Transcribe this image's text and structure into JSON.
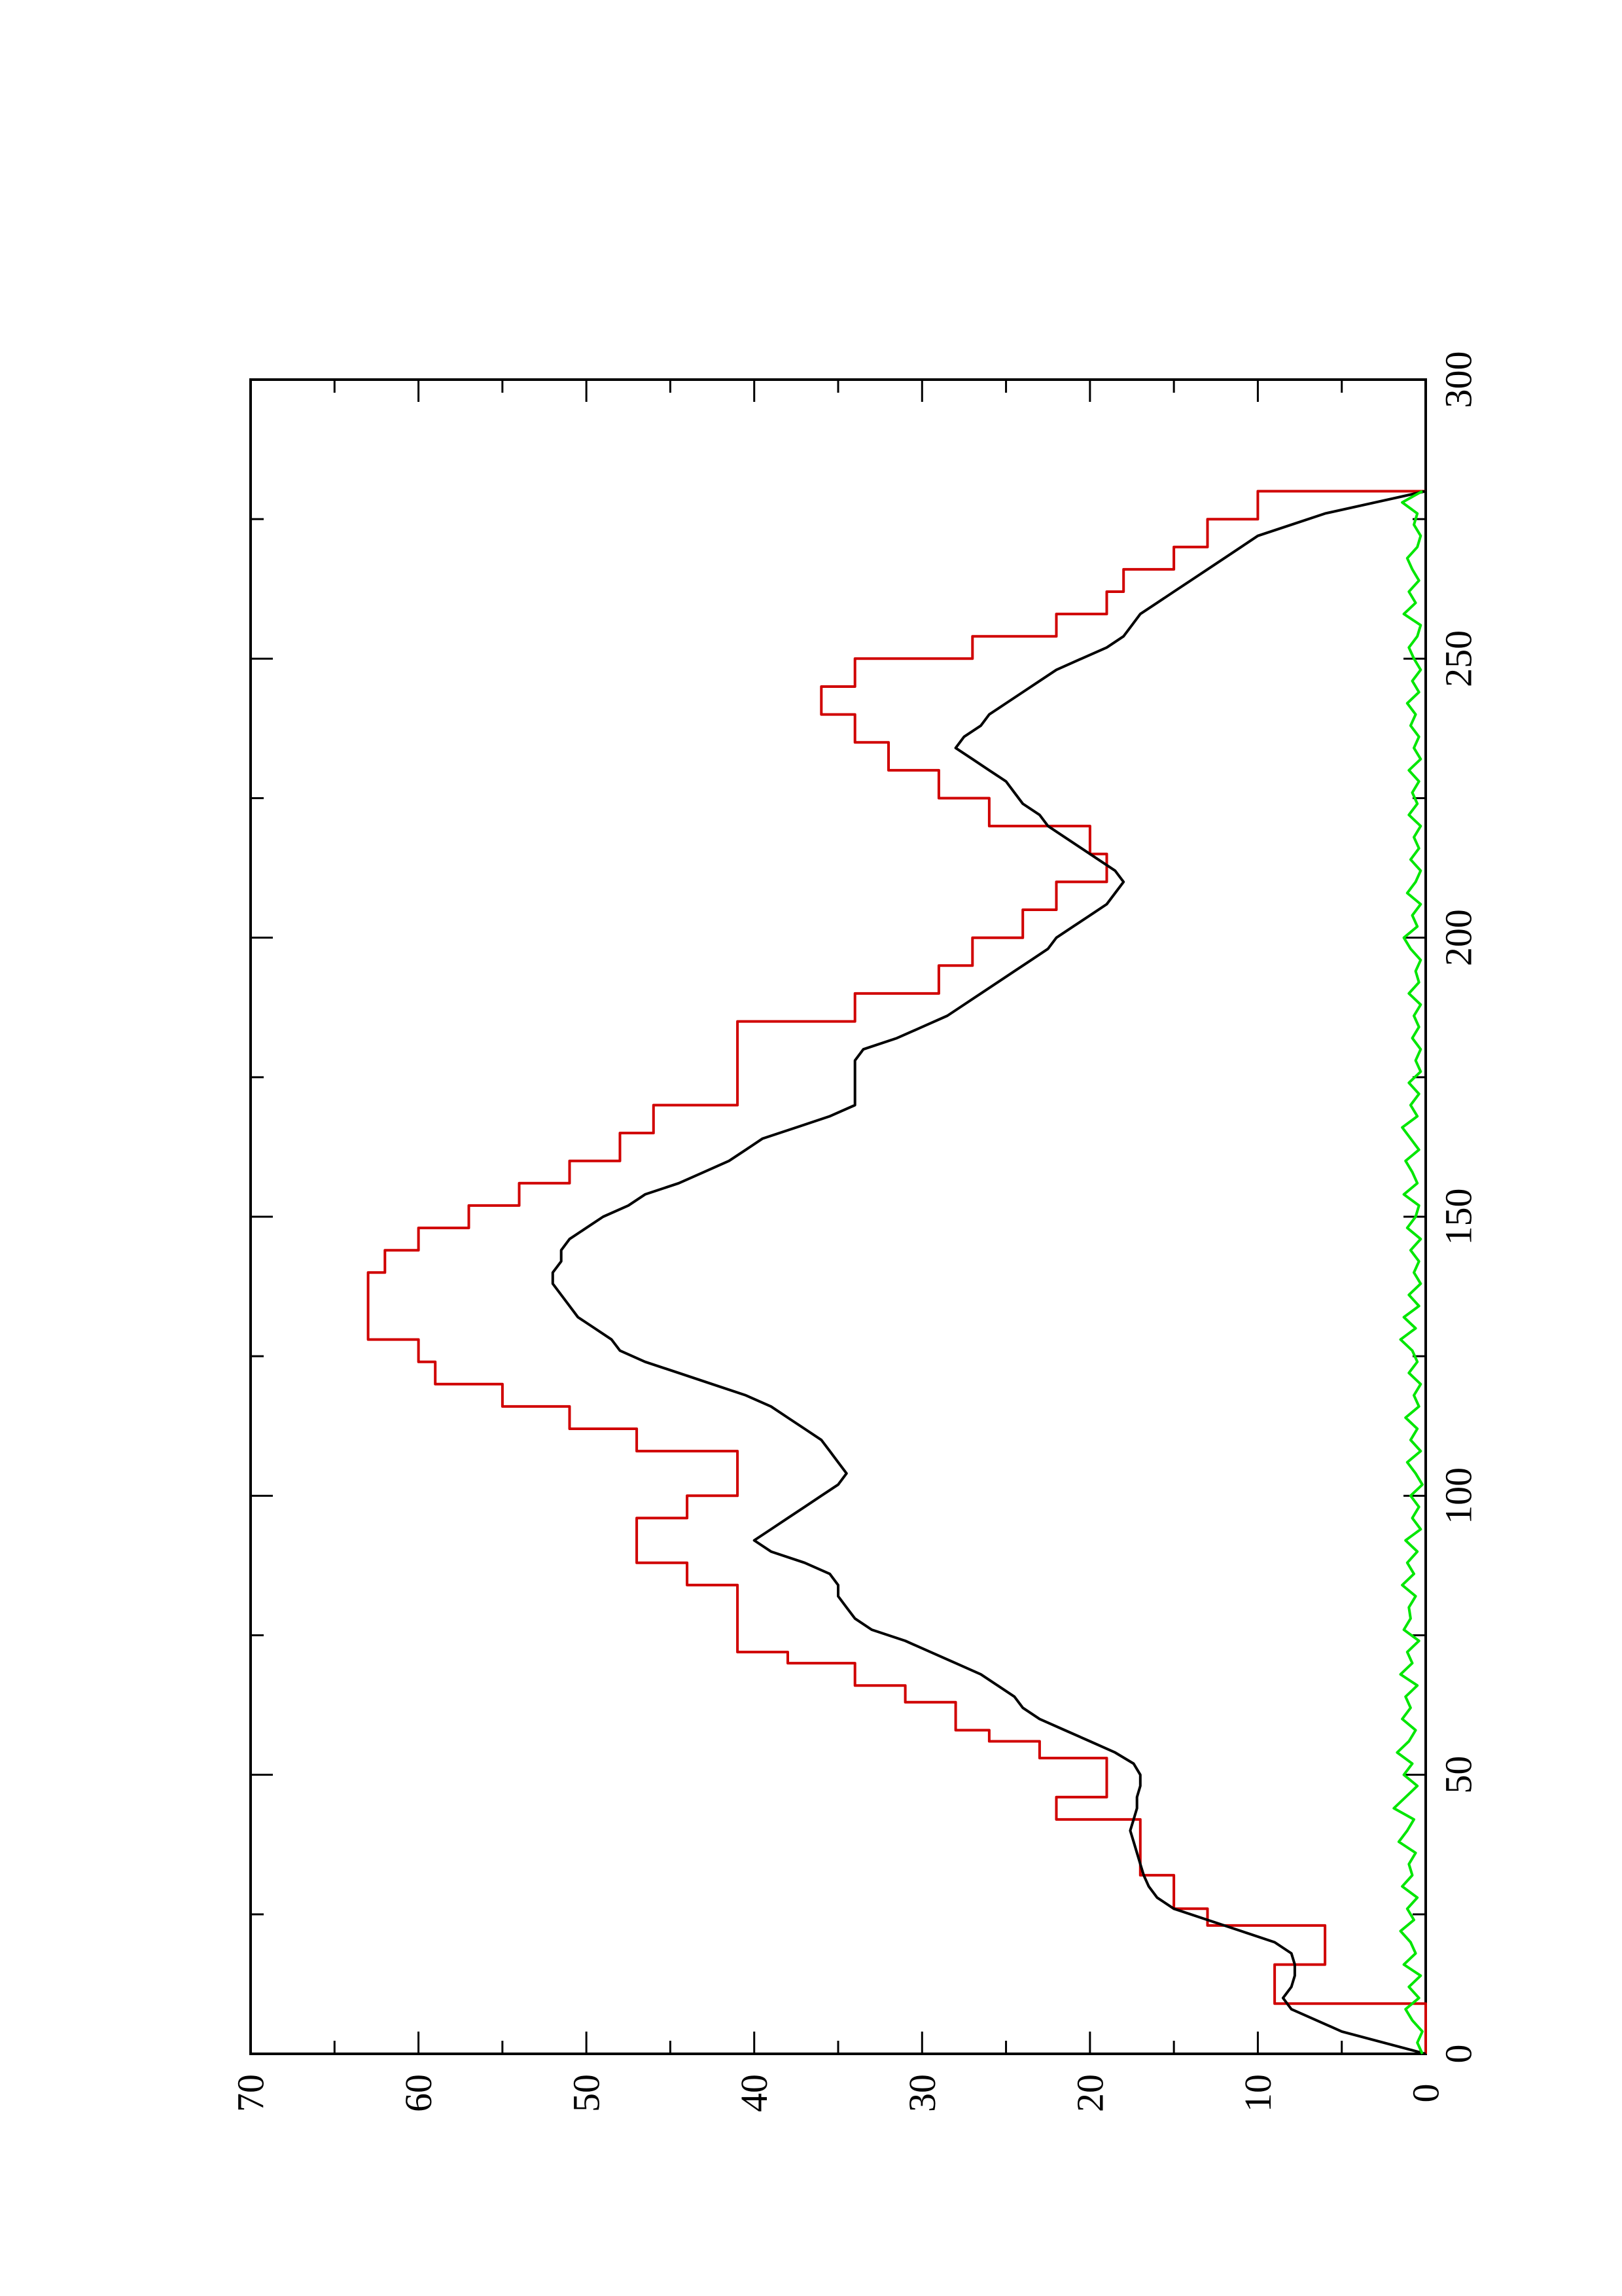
{
  "chart_data": {
    "type": "line",
    "orientation": "rotated-90-ccw",
    "title": "",
    "xlabel": "",
    "ylabel": "",
    "xlim": [
      0,
      300
    ],
    "ylim": [
      0,
      70
    ],
    "x_ticks": [
      0,
      50,
      100,
      150,
      200,
      250,
      300
    ],
    "y_ticks": [
      0,
      10,
      20,
      30,
      40,
      50,
      60,
      70
    ],
    "grid": false,
    "legend": "none",
    "series": [
      {
        "color": "#d00000",
        "step": true,
        "x": [
          0,
          9,
          12,
          16,
          19,
          23,
          26,
          32,
          37,
          42,
          46,
          50,
          53,
          56,
          58,
          60,
          63,
          66,
          68,
          70,
          72,
          74,
          76,
          80,
          84,
          88,
          92,
          96,
          100,
          104,
          108,
          112,
          116,
          120,
          124,
          128,
          132,
          136,
          140,
          144,
          148,
          152,
          156,
          160,
          165,
          170,
          175,
          180,
          185,
          190,
          195,
          200,
          205,
          210,
          215,
          220,
          225,
          230,
          235,
          240,
          245,
          250,
          254,
          258,
          262,
          266,
          270,
          275,
          280
        ],
        "y": [
          0,
          9,
          9,
          6,
          6,
          13,
          15,
          17,
          17,
          22,
          19,
          19,
          23,
          26,
          28,
          28,
          31,
          34,
          34,
          38,
          41,
          41,
          41,
          41,
          44,
          47,
          47,
          44,
          41,
          41,
          47,
          51,
          55,
          59,
          60,
          63,
          63,
          63,
          62,
          60,
          57,
          54,
          51,
          48,
          46,
          41,
          41,
          41,
          34,
          29,
          27,
          24,
          22,
          19,
          20,
          26,
          29,
          32,
          34,
          36,
          34,
          27,
          22,
          19,
          18,
          15,
          13,
          10,
          0
        ]
      },
      {
        "color": "#000000",
        "step": false,
        "x": [
          0,
          4,
          8,
          10,
          12,
          14,
          16,
          18,
          20,
          22,
          24,
          26,
          28,
          30,
          32,
          34,
          36,
          38,
          40,
          42,
          44,
          46,
          48,
          50,
          52,
          54,
          56,
          58,
          60,
          62,
          64,
          66,
          68,
          70,
          72,
          74,
          76,
          78,
          80,
          82,
          84,
          86,
          88,
          90,
          92,
          94,
          96,
          98,
          100,
          102,
          104,
          106,
          108,
          110,
          112,
          114,
          116,
          118,
          120,
          122,
          124,
          126,
          128,
          130,
          132,
          134,
          136,
          138,
          140,
          142,
          144,
          146,
          148,
          150,
          152,
          154,
          156,
          158,
          160,
          162,
          164,
          166,
          168,
          170,
          172,
          174,
          176,
          178,
          180,
          182,
          184,
          186,
          188,
          190,
          192,
          194,
          196,
          198,
          200,
          202,
          204,
          206,
          208,
          210,
          212,
          214,
          216,
          218,
          220,
          222,
          224,
          226,
          228,
          230,
          232,
          234,
          236,
          238,
          240,
          242,
          244,
          246,
          248,
          250,
          252,
          254,
          256,
          258,
          260,
          262,
          264,
          266,
          268,
          270,
          272,
          274,
          276,
          278,
          280
        ],
        "y": [
          0,
          5,
          8,
          8.5,
          8,
          7.8,
          7.8,
          8,
          9,
          11,
          13,
          15,
          16,
          16.5,
          16.8,
          17,
          17.2,
          17.4,
          17.6,
          17.4,
          17.2,
          17.2,
          17.0,
          17.0,
          17.4,
          18.5,
          20,
          21.5,
          23,
          24,
          24.5,
          25.5,
          26.5,
          28,
          29.5,
          31,
          33,
          34,
          34.5,
          35,
          35,
          35.5,
          37,
          39,
          40,
          39,
          38,
          37,
          36,
          35,
          34.5,
          35,
          35.5,
          36,
          37,
          38,
          39,
          40.5,
          42.5,
          44.5,
          46.5,
          48,
          48.5,
          49.5,
          50.5,
          51,
          51.5,
          52,
          52,
          51.5,
          51.5,
          51,
          50,
          49,
          47.5,
          46.5,
          44.5,
          43,
          41.5,
          40.5,
          39.5,
          37.5,
          35.5,
          34,
          34,
          34,
          34,
          34,
          33.5,
          31.5,
          30,
          28.5,
          27.5,
          26.5,
          25.5,
          24.5,
          23.5,
          22.5,
          22,
          21,
          20,
          19,
          18.5,
          18,
          18.5,
          19.5,
          20.5,
          21.5,
          22.5,
          23,
          24,
          24.5,
          25,
          26,
          27,
          28,
          27.5,
          26.5,
          26,
          25,
          24,
          23,
          22,
          20.5,
          19,
          18,
          17.5,
          17,
          16,
          15,
          14,
          13,
          12,
          11,
          10,
          8,
          6,
          3,
          0
        ]
      },
      {
        "color": "#00e600",
        "step": false,
        "x": [
          0,
          2,
          4,
          6,
          8,
          10,
          12,
          14,
          16,
          18,
          20,
          22,
          24,
          26,
          28,
          30,
          32,
          34,
          36,
          38,
          40,
          42,
          44,
          46,
          48,
          50,
          52,
          54,
          56,
          58,
          60,
          62,
          64,
          66,
          68,
          70,
          72,
          74,
          76,
          78,
          80,
          82,
          84,
          86,
          88,
          90,
          92,
          94,
          96,
          98,
          100,
          102,
          104,
          106,
          108,
          110,
          112,
          114,
          116,
          118,
          120,
          122,
          124,
          126,
          128,
          130,
          132,
          134,
          136,
          138,
          140,
          142,
          144,
          146,
          148,
          150,
          152,
          154,
          156,
          158,
          160,
          162,
          164,
          166,
          168,
          170,
          172,
          174,
          176,
          178,
          180,
          182,
          184,
          186,
          188,
          190,
          192,
          194,
          196,
          198,
          200,
          202,
          204,
          206,
          208,
          210,
          212,
          214,
          216,
          218,
          220,
          222,
          224,
          226,
          228,
          230,
          232,
          234,
          236,
          238,
          240,
          242,
          244,
          246,
          248,
          250,
          252,
          254,
          256,
          258,
          260,
          262,
          264,
          266,
          268,
          270,
          272,
          274,
          276,
          278,
          280
        ],
        "y": [
          0.2,
          0.5,
          0.2,
          0.8,
          1.2,
          0.4,
          1.0,
          0.3,
          1.3,
          0.6,
          0.9,
          1.5,
          0.7,
          1.1,
          0.5,
          1.4,
          0.8,
          1.0,
          0.6,
          1.6,
          1.1,
          0.7,
          1.9,
          1.2,
          0.5,
          1.3,
          0.8,
          1.7,
          1.0,
          0.6,
          1.4,
          0.9,
          1.2,
          0.5,
          1.5,
          0.8,
          1.1,
          0.4,
          1.3,
          0.9,
          1.0,
          0.6,
          1.4,
          0.7,
          1.1,
          0.5,
          1.2,
          0.3,
          0.8,
          0.4,
          0.9,
          0.2,
          0.6,
          1.1,
          0.3,
          0.9,
          0.5,
          1.2,
          0.4,
          0.7,
          0.3,
          1.0,
          0.5,
          0.8,
          1.5,
          0.6,
          1.3,
          0.4,
          1.0,
          0.3,
          0.7,
          0.4,
          0.9,
          0.3,
          1.1,
          0.6,
          0.4,
          1.3,
          0.5,
          0.8,
          1.2,
          0.4,
          0.9,
          1.4,
          0.5,
          0.9,
          0.4,
          1.0,
          0.3,
          0.6,
          0.3,
          0.8,
          0.4,
          0.7,
          0.3,
          1.0,
          0.4,
          0.6,
          0.3,
          0.9,
          1.3,
          0.5,
          0.8,
          0.3,
          1.1,
          0.6,
          0.3,
          0.9,
          0.4,
          0.7,
          0.3,
          1.0,
          0.5,
          0.8,
          0.4,
          1.0,
          0.3,
          0.7,
          0.4,
          0.9,
          0.6,
          1.1,
          0.4,
          0.8,
          0.3,
          0.7,
          1.0,
          0.5,
          0.3,
          1.3,
          0.6,
          1.0,
          0.4,
          0.8,
          1.1,
          0.5,
          0.3,
          0.7,
          0.5,
          1.4,
          0.2
        ]
      }
    ]
  }
}
